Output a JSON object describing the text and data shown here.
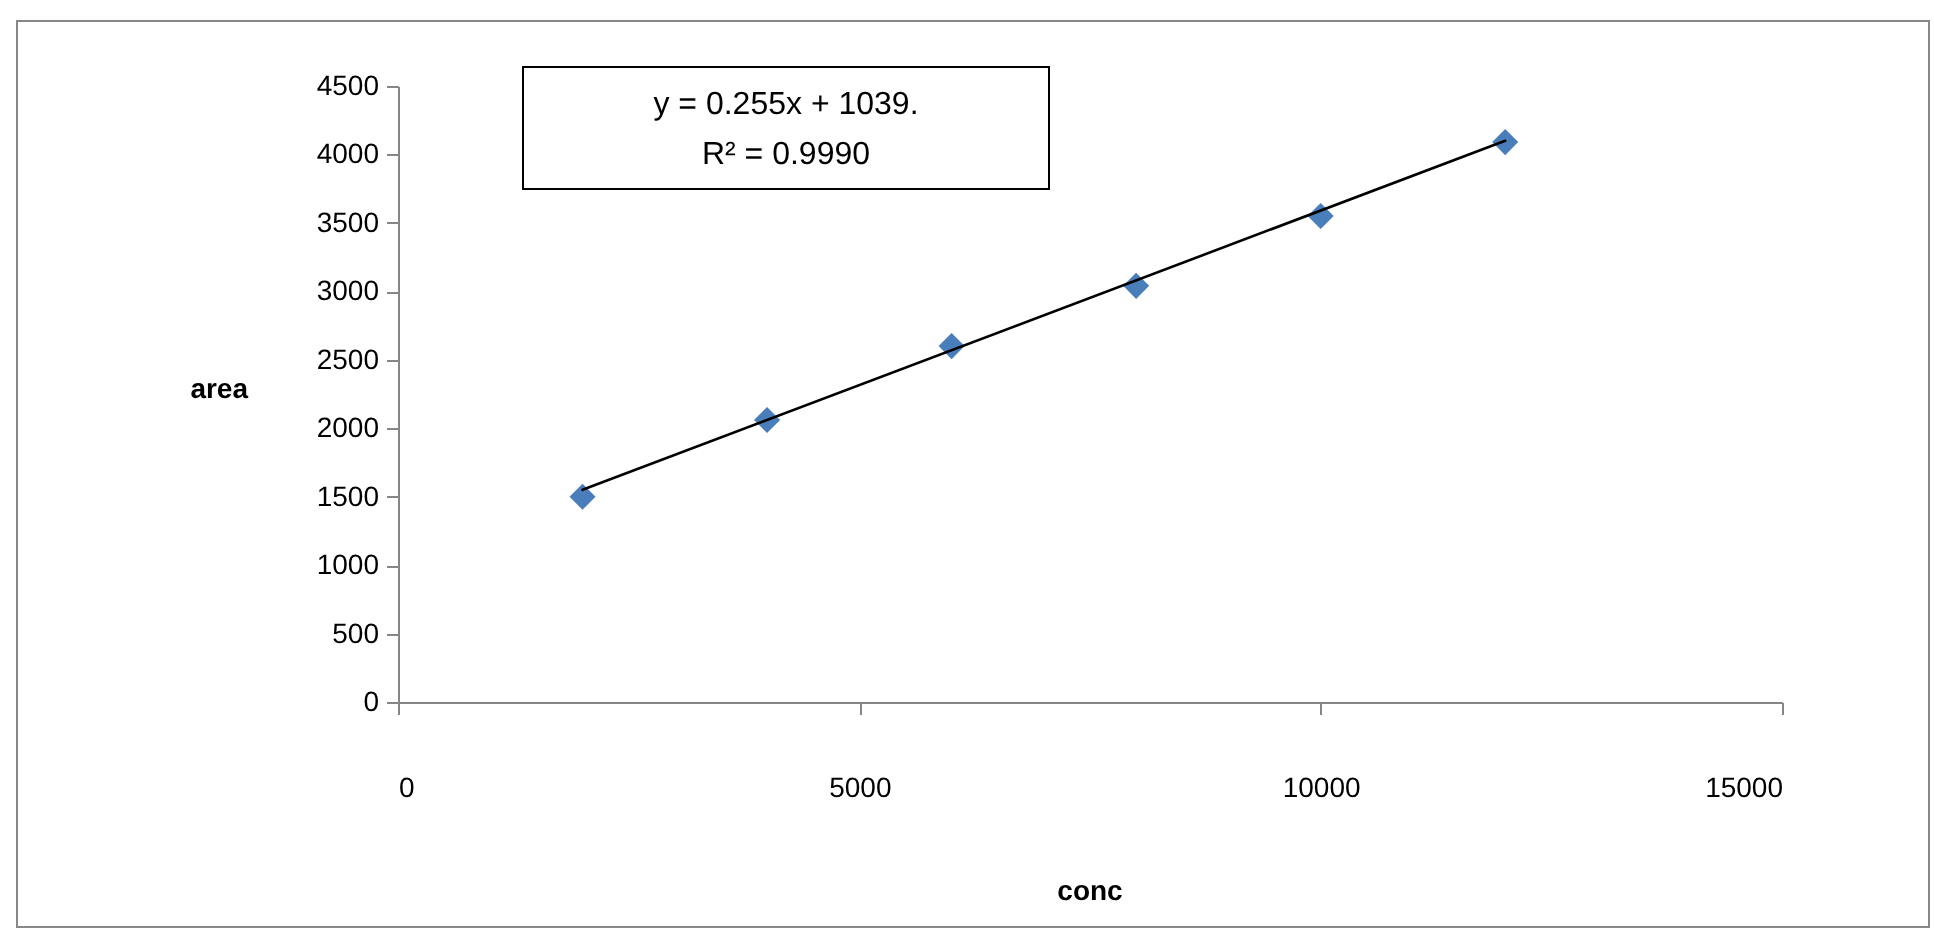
{
  "chart_data": {
    "type": "scatter",
    "xlabel": "conc",
    "ylabel": "area",
    "x": [
      2000,
      4000,
      6000,
      8000,
      10000,
      12000
    ],
    "series": [
      {
        "color": "#4a7ebb",
        "values": [
          1500,
          2060,
          2600,
          3040,
          3550,
          4090
        ]
      },
      {
        "type": "line",
        "color": "#000000",
        "x": [
          2000,
          12000
        ],
        "values": [
          1550,
          4100
        ],
        "marker": "none"
      }
    ],
    "annotations": [
      "y = 0.255x + 1039.",
      "R² = 0.9990"
    ],
    "xlim": [
      0,
      15000
    ],
    "xticks": [
      0,
      5000,
      10000,
      15000
    ],
    "ylim": [
      0,
      4500
    ],
    "yticks": [
      0,
      500,
      1000,
      1500,
      2000,
      2500,
      3000,
      3500,
      4000,
      4500
    ],
    "grid": false,
    "marker": "diamond"
  }
}
